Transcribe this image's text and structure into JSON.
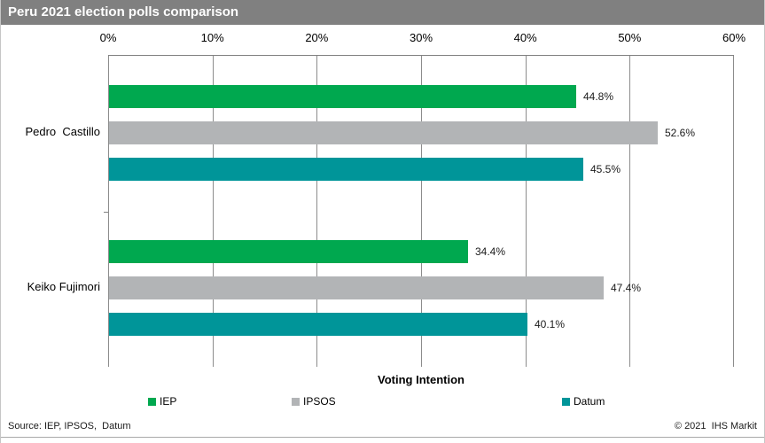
{
  "title": "Peru 2021 election polls comparison",
  "footer": {
    "source": "Source: IEP, IPSOS,  Datum",
    "copyright": "© 2021  IHS Markit"
  },
  "chart_data": {
    "type": "bar",
    "orientation": "horizontal",
    "title": "Peru 2021 election polls comparison",
    "xlabel": "Voting Intention",
    "categories": [
      "Pedro  Castillo",
      "Keiko Fujimori"
    ],
    "series": [
      {
        "name": "IEP",
        "color": "#00a84f",
        "values": [
          44.8,
          34.4
        ],
        "labels": [
          "44.8%",
          "34.4%"
        ]
      },
      {
        "name": "IPSOS",
        "color": "#b2b4b6",
        "values": [
          52.6,
          47.4
        ],
        "labels": [
          "52.6%",
          "47.4%"
        ]
      },
      {
        "name": "Datum",
        "color": "#009599",
        "values": [
          45.5,
          40.1
        ],
        "labels": [
          "45.5%",
          "40.1%"
        ]
      }
    ],
    "axis": {
      "min": 0,
      "max": 60,
      "ticks": [
        "0%",
        "10%",
        "20%",
        "30%",
        "40%",
        "50%",
        "60%"
      ],
      "tick_position": "top",
      "grid": "vertical"
    },
    "legend_position": "bottom",
    "colors": {
      "title_bar_bg": "#808080",
      "title_text": "#ffffff",
      "gridline": "#8c8c8c",
      "axis_line": "#808080"
    }
  }
}
